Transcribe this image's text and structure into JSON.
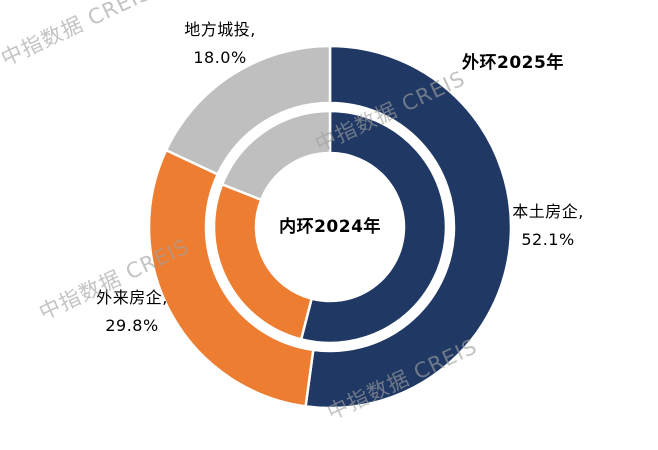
{
  "watermark": {
    "text": "中指数据 CREIS"
  },
  "chart_data": {
    "type": "pie",
    "variant": "nested-donut",
    "categories": [
      "本土房企",
      "外来房企",
      "地方城投"
    ],
    "category_slugs": [
      "local-firms",
      "external-firms",
      "city-investment"
    ],
    "colors": [
      "#1f3864",
      "#ed7d31",
      "#bfbfbf"
    ],
    "start_angle_deg": 0,
    "direction": "clockwise",
    "legend": "none",
    "rings": [
      {
        "name": "外环2025年",
        "ring": "outer",
        "values": [
          52.1,
          29.8,
          18.0
        ]
      },
      {
        "name": "内环2024年",
        "ring": "inner",
        "values": [
          54,
          27,
          19
        ]
      }
    ],
    "labels": {
      "outer_ring_title": "外环2025年",
      "inner_ring_title": "内环2024年",
      "city_investment": {
        "line1": "地方城投,",
        "line2": "18.0%"
      },
      "local_firms": {
        "line1": "本土房企,",
        "line2": "52.1%"
      },
      "external_firms": {
        "line1": "外来房企,",
        "line2": "29.8%"
      }
    }
  }
}
